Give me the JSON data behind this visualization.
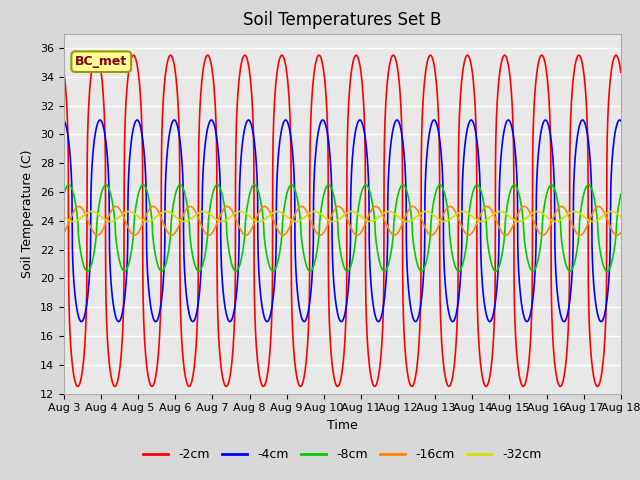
{
  "title": "Soil Temperatures Set B",
  "xlabel": "Time",
  "ylabel": "Soil Temperature (C)",
  "annotation": "BC_met",
  "ylim": [
    12,
    37
  ],
  "xlim": [
    0,
    15
  ],
  "xtick_labels": [
    "Aug 3",
    "Aug 4",
    "Aug 5",
    "Aug 6",
    "Aug 7",
    "Aug 8",
    "Aug 9",
    "Aug 10",
    "Aug 11",
    "Aug 12",
    "Aug 13",
    "Aug 14",
    "Aug 15",
    "Aug 16",
    "Aug 17",
    "Aug 18"
  ],
  "xtick_positions": [
    0,
    1,
    2,
    3,
    4,
    5,
    6,
    7,
    8,
    9,
    10,
    11,
    12,
    13,
    14,
    15
  ],
  "ytick_positions": [
    12,
    14,
    16,
    18,
    20,
    22,
    24,
    26,
    28,
    30,
    32,
    34,
    36
  ],
  "series": [
    {
      "label": "-2cm",
      "color": "#ff0000",
      "mean": 24.0,
      "amplitude": 11.5,
      "period": 1.0,
      "phase": 0.62,
      "sharpness": 3.5
    },
    {
      "label": "-4cm",
      "color": "#0000ff",
      "mean": 24.0,
      "amplitude": 7.0,
      "period": 1.0,
      "phase": 0.72,
      "sharpness": 2.5
    },
    {
      "label": "-8cm",
      "color": "#00cc00",
      "mean": 23.5,
      "amplitude": 3.0,
      "period": 1.0,
      "phase": 0.88,
      "sharpness": 1.5
    },
    {
      "label": "-16cm",
      "color": "#ff8800",
      "mean": 24.0,
      "amplitude": 1.0,
      "period": 1.0,
      "phase": 1.15,
      "sharpness": 1.0
    },
    {
      "label": "-32cm",
      "color": "#dddd00",
      "mean": 24.3,
      "amplitude": 0.35,
      "period": 1.0,
      "phase": 1.5,
      "sharpness": 1.0
    }
  ],
  "fig_bg_color": "#d8d8d8",
  "plot_bg_color": "#e8e8e8",
  "grid_color": "#ffffff",
  "title_fontsize": 12,
  "axis_label_fontsize": 9,
  "tick_fontsize": 8
}
